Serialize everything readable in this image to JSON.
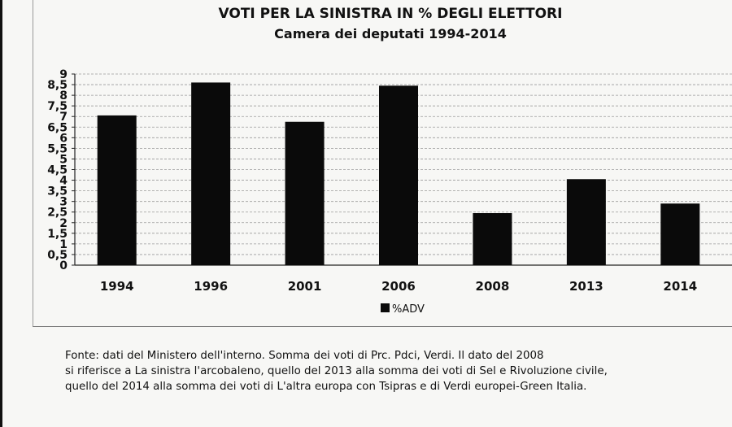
{
  "chart_data": {
    "type": "bar",
    "title": "VOTI PER LA SINISTRA IN % DEGLI ELETTORI",
    "subtitle": "Camera dei deputati 1994-2014",
    "categories": [
      "1994",
      "1996",
      "2001",
      "2006",
      "2008",
      "2013",
      "2014"
    ],
    "series": [
      {
        "name": "%ADV",
        "values": [
          7.05,
          8.6,
          6.75,
          8.45,
          2.45,
          4.05,
          2.9
        ]
      }
    ],
    "ylim": [
      0,
      9
    ],
    "yticks": [
      "0",
      "0,5",
      "1",
      "1,5",
      "2",
      "2,5",
      "3",
      "3,5",
      "4",
      "4,5",
      "5",
      "5,5",
      "6",
      "6,5",
      "7",
      "7,5",
      "8",
      "8,5",
      "9"
    ],
    "grid": true,
    "legend": "bottom-center",
    "colors": {
      "bar": "#0a0a0a",
      "grid": "#9a9a9a"
    }
  },
  "source_note": {
    "line1": "Fonte: dati del Ministero dell'interno. Somma dei voti di Prc. Pdci, Verdi. Il dato del 2008",
    "line2": "si riferisce a La sinistra l'arcobaleno,  quello del 2013 alla somma dei voti di Sel e Rivoluzione civile,",
    "line3": "quello del 2014 alla somma dei voti di L'altra europa con Tsipras e di Verdi europei-Green Italia."
  }
}
